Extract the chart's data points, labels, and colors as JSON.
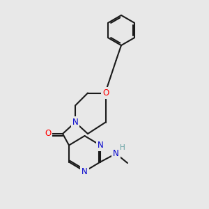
{
  "bg_color": "#e8e8e8",
  "bond_color": "#1a1a1a",
  "bond_width": 1.5,
  "atom_colors": {
    "O": "#ff0000",
    "N": "#0000cc",
    "NH": "#5f9ea0",
    "C": "#1a1a1a"
  },
  "font_size_atom": 8.5,
  "fig_bg": "#e8e8e8",
  "xlim": [
    0,
    10
  ],
  "ylim": [
    0,
    10
  ]
}
